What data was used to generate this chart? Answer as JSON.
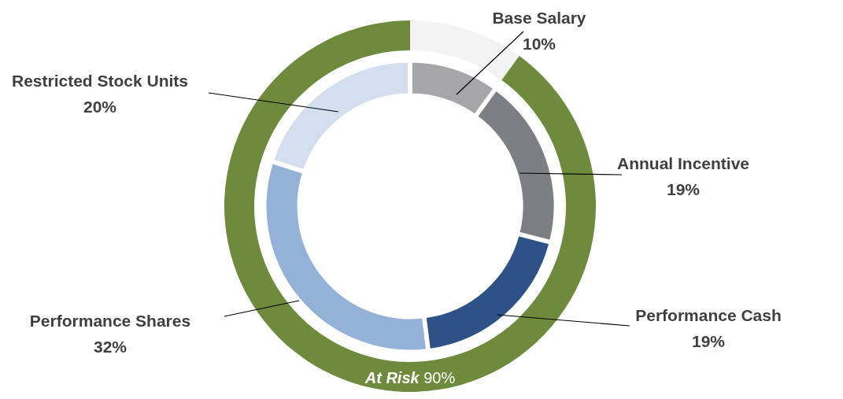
{
  "chart_data": [
    {
      "type": "donut",
      "categories": [
        "Base Salary",
        "Annual Incentive",
        "Performance Cash",
        "Performance Shares",
        "Restricted Stock Units"
      ],
      "values": [
        10,
        19,
        19,
        32,
        20
      ],
      "colors": [
        "#a6a6a8",
        "#7e7f84",
        "#2e5288",
        "#94b1d8",
        "#d3dfee"
      ],
      "value_labels": [
        "10%",
        "19%",
        "19%",
        "32%",
        "20%"
      ]
    },
    {
      "type": "donut",
      "categories": [
        null,
        "At Risk"
      ],
      "values": [
        10,
        90
      ],
      "colors": [
        "#f3f3f3",
        "#6e8b3d"
      ],
      "value_labels": [
        null,
        "90%"
      ]
    }
  ]
}
